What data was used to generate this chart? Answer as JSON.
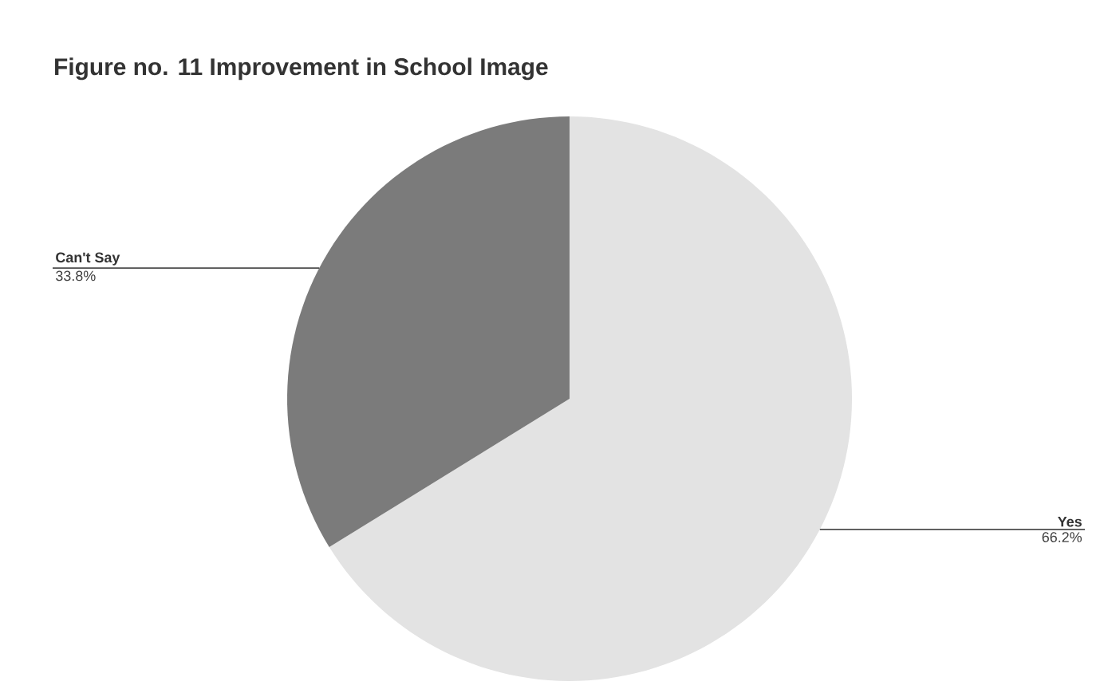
{
  "chart_data": {
    "type": "pie",
    "title": "Figure no. 11 Improvement in School Image",
    "categories": [
      "Yes",
      "Can't Say"
    ],
    "values": [
      66.2,
      33.8
    ],
    "value_labels": [
      "66.2%",
      "33.8%"
    ],
    "colors": [
      "#e3e3e3",
      "#7b7b7b"
    ]
  }
}
